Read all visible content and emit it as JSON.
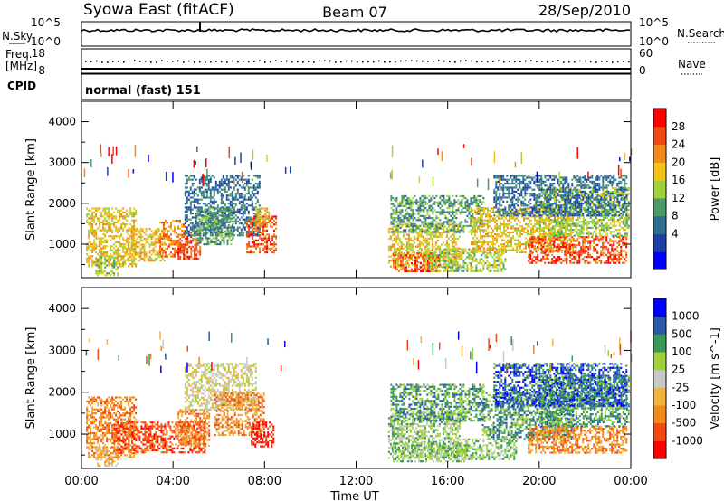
{
  "header": {
    "title": "Syowa East (fitACF)",
    "beam": "Beam 07",
    "date": "28/Sep/2010"
  },
  "nsky_panel": {
    "left_label": "N.Sky",
    "left_ticks": [
      "10^5",
      "10^0"
    ],
    "right_ticks": [
      "10^5",
      "10^0"
    ],
    "right_label": "N.Search"
  },
  "freq_panel": {
    "left_label_1": "Freq.",
    "left_label_2": "[MHz]",
    "left_ticks": [
      "18",
      "8"
    ],
    "right_ticks": [
      "60",
      "0"
    ],
    "right_label": "Nave"
  },
  "cpid_panel": {
    "label": "CPID",
    "mode": "normal (fast) 151"
  },
  "colors": {
    "frame": "#000000",
    "power_scale": [
      "#0000ff",
      "#1f3fa8",
      "#2f6e8e",
      "#4b9a6a",
      "#9fd23c",
      "#f2c41a",
      "#f08a1a",
      "#f24a12",
      "#ff0000"
    ],
    "velocity_scale": [
      "#ff0000",
      "#f24a12",
      "#f28a1a",
      "#f0b43c",
      "#c8c8c8",
      "#9fd23c",
      "#3a9a5a",
      "#2a5aa8",
      "#0000ff"
    ]
  },
  "chart_data": [
    {
      "type": "heatmap",
      "name": "power-panel",
      "ylabel": "Slant Range [km]",
      "xlabel": "",
      "x_tick_labels": [
        "00:00",
        "04:00",
        "08:00",
        "12:00",
        "16:00",
        "20:00",
        "00:00"
      ],
      "y_ticks": [
        1000,
        2000,
        3000,
        4000
      ],
      "ylim": [
        180,
        4500
      ],
      "xlim_hours": [
        0,
        24
      ],
      "colorbar": {
        "label": "Power [dB]",
        "ticks": [
          "28",
          "24",
          "20",
          "16",
          "12",
          "8",
          "4"
        ]
      },
      "echo_regions": [
        {
          "t0": 0.2,
          "t1": 2.4,
          "r0": 450,
          "r1": 1900,
          "level": 5
        },
        {
          "t0": 0.6,
          "t1": 1.6,
          "r0": 250,
          "r1": 700,
          "level": 4
        },
        {
          "t0": 2.0,
          "t1": 3.6,
          "r0": 600,
          "r1": 1400,
          "level": 5
        },
        {
          "t0": 3.4,
          "t1": 4.6,
          "r0": 700,
          "r1": 1600,
          "level": 6
        },
        {
          "t0": 4.2,
          "t1": 5.2,
          "r0": 650,
          "r1": 1300,
          "level": 7
        },
        {
          "t0": 4.5,
          "t1": 7.8,
          "r0": 1200,
          "r1": 2700,
          "level": 2
        },
        {
          "t0": 5.0,
          "t1": 6.6,
          "r0": 1000,
          "r1": 1900,
          "level": 3
        },
        {
          "t0": 7.2,
          "t1": 8.5,
          "r0": 800,
          "r1": 1700,
          "level": 7
        },
        {
          "t0": 7.6,
          "t1": 8.3,
          "r0": 1500,
          "r1": 1900,
          "level": 5
        },
        {
          "t0": 13.4,
          "t1": 16.5,
          "r0": 450,
          "r1": 1500,
          "level": 5
        },
        {
          "t0": 13.6,
          "t1": 15.6,
          "r0": 350,
          "r1": 800,
          "level": 7
        },
        {
          "t0": 13.5,
          "t1": 17.6,
          "r0": 1300,
          "r1": 2200,
          "level": 3
        },
        {
          "t0": 15.0,
          "t1": 18.5,
          "r0": 350,
          "r1": 900,
          "level": 4
        },
        {
          "t0": 17.0,
          "t1": 21.5,
          "r0": 800,
          "r1": 1900,
          "level": 5
        },
        {
          "t0": 19.5,
          "t1": 23.8,
          "r0": 550,
          "r1": 1200,
          "level": 7
        },
        {
          "t0": 20.0,
          "t1": 23.9,
          "r0": 1200,
          "r1": 2400,
          "level": 4
        },
        {
          "t0": 18.0,
          "t1": 23.8,
          "r0": 1700,
          "r1": 2700,
          "level": 2
        }
      ]
    },
    {
      "type": "heatmap",
      "name": "velocity-panel",
      "ylabel": "Slant Range [km]",
      "xlabel": "Time UT",
      "x_tick_labels": [
        "00:00",
        "04:00",
        "08:00",
        "12:00",
        "16:00",
        "20:00",
        "00:00"
      ],
      "y_ticks": [
        1000,
        2000,
        3000,
        4000
      ],
      "ylim": [
        180,
        4500
      ],
      "xlim_hours": [
        0,
        24
      ],
      "colorbar": {
        "label": "Velocity [m s^-1]",
        "ticks": [
          "1000",
          "500",
          "100",
          "25",
          "-25",
          "-100",
          "-500",
          "-1000"
        ]
      },
      "echo_regions": [
        {
          "t0": 0.2,
          "t1": 2.4,
          "r0": 450,
          "r1": 1900,
          "level": 2
        },
        {
          "t0": 0.6,
          "t1": 1.6,
          "r0": 250,
          "r1": 700,
          "level": 3
        },
        {
          "t0": 1.4,
          "t1": 5.4,
          "r0": 550,
          "r1": 1300,
          "level": 1
        },
        {
          "t0": 4.2,
          "t1": 5.6,
          "r0": 700,
          "r1": 1600,
          "level": 2
        },
        {
          "t0": 4.5,
          "t1": 7.6,
          "r0": 1600,
          "r1": 2700,
          "level": 4
        },
        {
          "t0": 5.8,
          "t1": 8.0,
          "r0": 1000,
          "r1": 2000,
          "level": 2
        },
        {
          "t0": 7.4,
          "t1": 8.4,
          "r0": 700,
          "r1": 1300,
          "level": 0
        },
        {
          "t0": 13.4,
          "t1": 16.5,
          "r0": 450,
          "r1": 1500,
          "level": 5
        },
        {
          "t0": 13.6,
          "t1": 16.8,
          "r0": 350,
          "r1": 800,
          "level": 5
        },
        {
          "t0": 13.5,
          "t1": 17.6,
          "r0": 1300,
          "r1": 2200,
          "level": 6
        },
        {
          "t0": 16.5,
          "t1": 19.0,
          "r0": 400,
          "r1": 900,
          "level": 5
        },
        {
          "t0": 17.5,
          "t1": 21.5,
          "r0": 900,
          "r1": 2000,
          "level": 6
        },
        {
          "t0": 19.5,
          "t1": 23.8,
          "r0": 550,
          "r1": 1200,
          "level": 2
        },
        {
          "t0": 20.0,
          "t1": 23.9,
          "r0": 1200,
          "r1": 2400,
          "level": 6
        },
        {
          "t0": 18.0,
          "t1": 23.8,
          "r0": 1700,
          "r1": 2700,
          "level": 7
        }
      ]
    }
  ]
}
